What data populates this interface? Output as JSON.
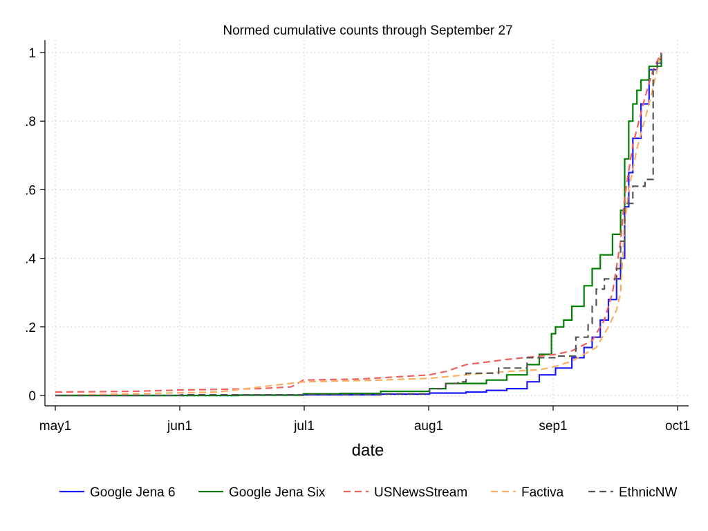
{
  "chart_data": {
    "type": "line",
    "title": "Normed cumulative counts through September 27",
    "xlabel": "date",
    "ylabel": "",
    "x_ticks": [
      "may1",
      "jun1",
      "jul1",
      "aug1",
      "sep1",
      "oct1"
    ],
    "y_ticks": [
      "0",
      ".2",
      ".4",
      ".6",
      ".8",
      "1"
    ],
    "xlim": [
      "2007-05-01",
      "2007-10-01"
    ],
    "ylim": [
      0,
      1
    ],
    "grid": true,
    "legend_position": "bottom",
    "series": [
      {
        "name": "Google Jena 6",
        "color": "#1a1aff",
        "style": "solid-step",
        "points": [
          [
            "2007-05-01",
            0.0
          ],
          [
            "2007-06-15",
            0.001
          ],
          [
            "2007-07-01",
            0.002
          ],
          [
            "2007-07-20",
            0.004
          ],
          [
            "2007-08-01",
            0.007
          ],
          [
            "2007-08-10",
            0.01
          ],
          [
            "2007-08-15",
            0.015
          ],
          [
            "2007-08-20",
            0.02
          ],
          [
            "2007-08-25",
            0.04
          ],
          [
            "2007-08-28",
            0.06
          ],
          [
            "2007-09-01",
            0.08
          ],
          [
            "2007-09-05",
            0.11
          ],
          [
            "2007-09-08",
            0.14
          ],
          [
            "2007-09-10",
            0.17
          ],
          [
            "2007-09-12",
            0.22
          ],
          [
            "2007-09-14",
            0.28
          ],
          [
            "2007-09-16",
            0.34
          ],
          [
            "2007-09-17",
            0.4
          ],
          [
            "2007-09-18",
            0.55
          ],
          [
            "2007-09-19",
            0.65
          ],
          [
            "2007-09-20",
            0.75
          ],
          [
            "2007-09-22",
            0.85
          ],
          [
            "2007-09-24",
            0.95
          ],
          [
            "2007-09-26",
            0.97
          ],
          [
            "2007-09-27",
            1.0
          ]
        ]
      },
      {
        "name": "Google Jena Six",
        "color": "#008000",
        "style": "solid-step",
        "points": [
          [
            "2007-05-01",
            0.0
          ],
          [
            "2007-06-15",
            0.001
          ],
          [
            "2007-07-01",
            0.005
          ],
          [
            "2007-07-10",
            0.006
          ],
          [
            "2007-07-20",
            0.012
          ],
          [
            "2007-08-01",
            0.02
          ],
          [
            "2007-08-05",
            0.035
          ],
          [
            "2007-08-15",
            0.045
          ],
          [
            "2007-08-20",
            0.06
          ],
          [
            "2007-08-25",
            0.09
          ],
          [
            "2007-08-28",
            0.12
          ],
          [
            "2007-08-31",
            0.18
          ],
          [
            "2007-09-01",
            0.2
          ],
          [
            "2007-09-03",
            0.22
          ],
          [
            "2007-09-05",
            0.26
          ],
          [
            "2007-09-08",
            0.32
          ],
          [
            "2007-09-10",
            0.37
          ],
          [
            "2007-09-12",
            0.41
          ],
          [
            "2007-09-15",
            0.47
          ],
          [
            "2007-09-17",
            0.54
          ],
          [
            "2007-09-18",
            0.69
          ],
          [
            "2007-09-19",
            0.8
          ],
          [
            "2007-09-20",
            0.85
          ],
          [
            "2007-09-21",
            0.89
          ],
          [
            "2007-09-22",
            0.92
          ],
          [
            "2007-09-24",
            0.96
          ],
          [
            "2007-09-27",
            1.0
          ]
        ]
      },
      {
        "name": "USNewsStream",
        "color": "#f06060",
        "style": "dashed",
        "points": [
          [
            "2007-05-01",
            0.01
          ],
          [
            "2007-05-20",
            0.012
          ],
          [
            "2007-06-01",
            0.016
          ],
          [
            "2007-06-20",
            0.02
          ],
          [
            "2007-06-28",
            0.025
          ],
          [
            "2007-07-01",
            0.045
          ],
          [
            "2007-07-15",
            0.048
          ],
          [
            "2007-08-01",
            0.06
          ],
          [
            "2007-08-05",
            0.07
          ],
          [
            "2007-08-10",
            0.09
          ],
          [
            "2007-08-20",
            0.105
          ],
          [
            "2007-09-01",
            0.12
          ],
          [
            "2007-09-05",
            0.13
          ],
          [
            "2007-09-10",
            0.16
          ],
          [
            "2007-09-13",
            0.22
          ],
          [
            "2007-09-15",
            0.3
          ],
          [
            "2007-09-17",
            0.45
          ],
          [
            "2007-09-18",
            0.58
          ],
          [
            "2007-09-20",
            0.73
          ],
          [
            "2007-09-23",
            0.87
          ],
          [
            "2007-09-25",
            0.95
          ],
          [
            "2007-09-27",
            1.0
          ]
        ]
      },
      {
        "name": "Factiva",
        "color": "#f8b060",
        "style": "dashed",
        "points": [
          [
            "2007-05-01",
            0.0
          ],
          [
            "2007-05-20",
            0.005
          ],
          [
            "2007-06-10",
            0.01
          ],
          [
            "2007-07-01",
            0.04
          ],
          [
            "2007-07-20",
            0.045
          ],
          [
            "2007-08-01",
            0.05
          ],
          [
            "2007-08-10",
            0.06
          ],
          [
            "2007-08-20",
            0.07
          ],
          [
            "2007-08-28",
            0.075
          ],
          [
            "2007-09-01",
            0.085
          ],
          [
            "2007-09-05",
            0.1
          ],
          [
            "2007-09-08",
            0.12
          ],
          [
            "2007-09-11",
            0.14
          ],
          [
            "2007-09-14",
            0.2
          ],
          [
            "2007-09-16",
            0.25
          ],
          [
            "2007-09-17",
            0.3
          ],
          [
            "2007-09-18",
            0.5
          ],
          [
            "2007-09-19",
            0.6
          ],
          [
            "2007-09-21",
            0.72
          ],
          [
            "2007-09-24",
            0.85
          ],
          [
            "2007-09-26",
            0.95
          ],
          [
            "2007-09-27",
            1.0
          ]
        ]
      },
      {
        "name": "EthnicNW",
        "color": "#555555",
        "style": "dashed-step",
        "points": [
          [
            "2007-05-01",
            0.0
          ],
          [
            "2007-06-01",
            0.002
          ],
          [
            "2007-07-01",
            0.003
          ],
          [
            "2007-07-20",
            0.005
          ],
          [
            "2007-08-01",
            0.02
          ],
          [
            "2007-08-05",
            0.035
          ],
          [
            "2007-08-08",
            0.04
          ],
          [
            "2007-08-10",
            0.065
          ],
          [
            "2007-08-18",
            0.08
          ],
          [
            "2007-08-25",
            0.11
          ],
          [
            "2007-09-01",
            0.115
          ],
          [
            "2007-09-06",
            0.17
          ],
          [
            "2007-09-09",
            0.21
          ],
          [
            "2007-09-10",
            0.26
          ],
          [
            "2007-09-11",
            0.31
          ],
          [
            "2007-09-13",
            0.34
          ],
          [
            "2007-09-16",
            0.37
          ],
          [
            "2007-09-17",
            0.45
          ],
          [
            "2007-09-18",
            0.56
          ],
          [
            "2007-09-20",
            0.61
          ],
          [
            "2007-09-23",
            0.63
          ],
          [
            "2007-09-25",
            0.95
          ],
          [
            "2007-09-26",
            0.98
          ],
          [
            "2007-09-27",
            1.0
          ]
        ]
      }
    ]
  }
}
